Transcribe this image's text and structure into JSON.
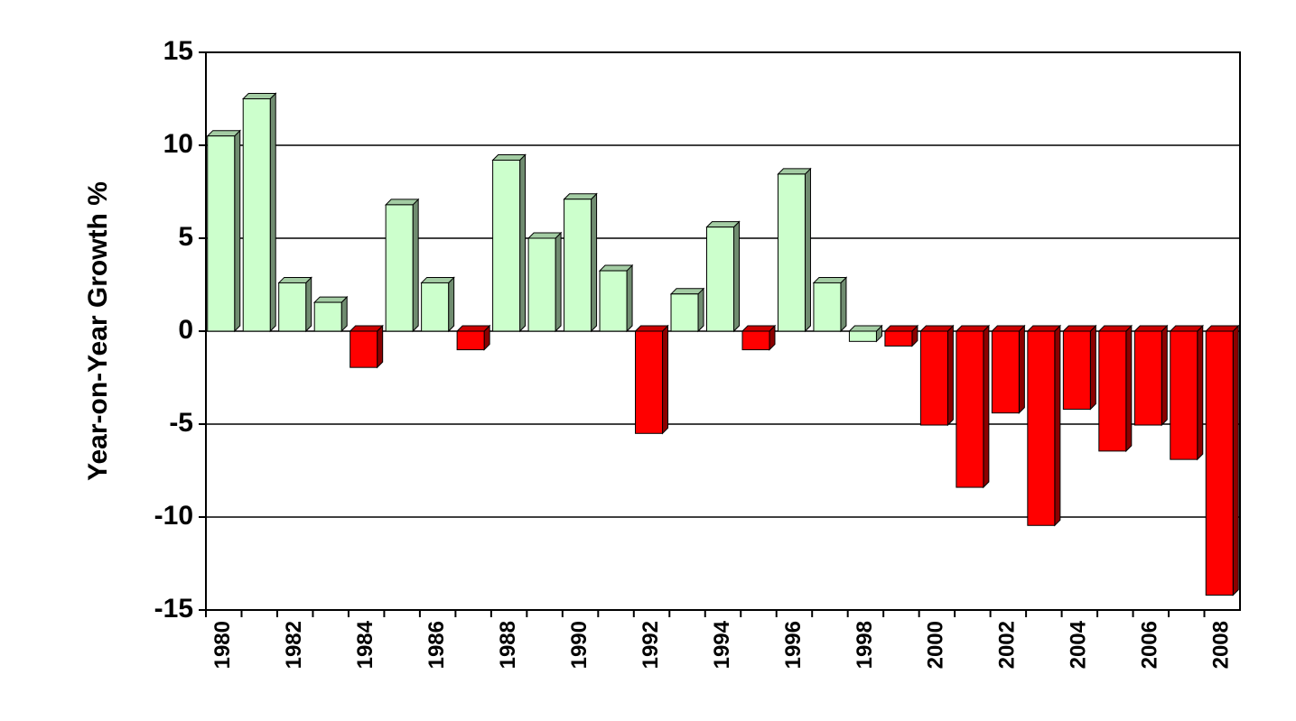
{
  "chart_data": {
    "type": "bar",
    "y_label": "Year-on-Year Growth %",
    "categories": [
      "1980",
      null,
      "1982",
      null,
      "1984",
      null,
      "1986",
      null,
      "1988",
      null,
      "1990",
      null,
      "1992",
      null,
      "1994",
      null,
      "1996",
      null,
      "1998",
      null,
      "2000",
      null,
      "2002",
      null,
      "2004",
      null,
      "2006",
      null,
      "2008"
    ],
    "values": [
      10.5,
      12.5,
      2.6,
      1.55,
      -1.95,
      6.8,
      2.6,
      -1.0,
      9.2,
      5.0,
      7.1,
      3.25,
      -5.5,
      2.0,
      5.6,
      -1.0,
      8.45,
      2.6,
      -0.55,
      -0.8,
      -5.05,
      -8.4,
      -4.4,
      -10.45,
      -4.2,
      -6.45,
      -5.05,
      -6.9,
      -14.2
    ],
    "colors": [
      "#ccffcc",
      "#ccffcc",
      "#ccffcc",
      "#ccffcc",
      "#ff0000",
      "#ccffcc",
      "#ccffcc",
      "#ff0000",
      "#ccffcc",
      "#ccffcc",
      "#ccffcc",
      "#ccffcc",
      "#ff0000",
      "#ccffcc",
      "#ccffcc",
      "#ff0000",
      "#ccffcc",
      "#ccffcc",
      "#ccffcc",
      "#ff0000",
      "#ff0000",
      "#ff0000",
      "#ff0000",
      "#ff0000",
      "#ff0000",
      "#ff0000",
      "#ff0000",
      "#ff0000",
      "#ff0000"
    ],
    "ylim": [
      -15,
      15
    ],
    "yticks": [
      -15,
      -10,
      -5,
      0,
      5,
      10,
      15
    ],
    "grid": true
  }
}
